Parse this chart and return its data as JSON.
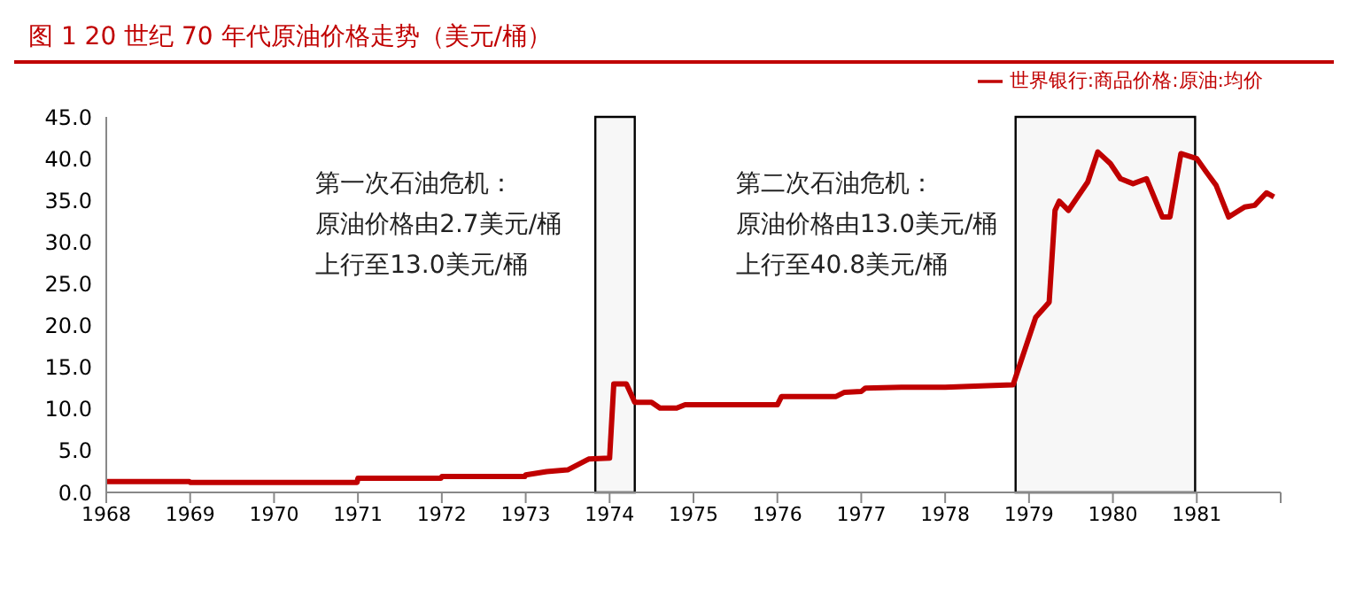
{
  "chart_data": {
    "type": "line",
    "title": "图 1 20 世纪 70 年代原油价格走势（美元/桶）",
    "x": [
      1968.0,
      1968.5,
      1968.99,
      1969.0,
      1969.5,
      1970.0,
      1970.5,
      1970.99,
      1971.0,
      1971.5,
      1971.99,
      1972.0,
      1972.5,
      1972.99,
      1973.0,
      1973.25,
      1973.5,
      1973.75,
      1974.0,
      1974.05,
      1974.2,
      1974.3,
      1974.5,
      1974.6,
      1974.8,
      1974.9,
      1975.5,
      1976.0,
      1976.05,
      1976.7,
      1976.8,
      1977.0,
      1977.05,
      1977.5,
      1978.0,
      1978.5,
      1978.81,
      1979.08,
      1979.24,
      1979.31,
      1979.36,
      1979.47,
      1979.7,
      1979.82,
      1979.97,
      1980.09,
      1980.24,
      1980.4,
      1980.59,
      1980.68,
      1980.81,
      1981.0,
      1981.12,
      1981.23,
      1981.38,
      1981.57,
      1981.69,
      1981.83,
      1981.92
    ],
    "series": [
      {
        "name": "世界银行:商品价格:原油:均价",
        "color": "#c00000",
        "values": [
          1.3,
          1.3,
          1.3,
          1.2,
          1.2,
          1.2,
          1.2,
          1.2,
          1.7,
          1.7,
          1.7,
          1.9,
          1.9,
          1.9,
          2.1,
          2.5,
          2.7,
          4.0,
          4.1,
          13.0,
          13.0,
          10.8,
          10.8,
          10.1,
          10.1,
          10.5,
          10.5,
          10.5,
          11.5,
          11.5,
          12.0,
          12.1,
          12.5,
          12.6,
          12.6,
          12.8,
          12.9,
          21.0,
          22.8,
          33.8,
          34.9,
          33.8,
          37.2,
          40.8,
          39.4,
          37.6,
          37.0,
          37.6,
          33.0,
          33.0,
          40.6,
          40.0,
          38.3,
          36.8,
          33.0,
          34.2,
          34.4,
          35.9,
          35.4
        ]
      }
    ],
    "xlim": [
      1968,
      1982
    ],
    "xticks": [
      1968,
      1969,
      1970,
      1971,
      1972,
      1973,
      1974,
      1975,
      1976,
      1977,
      1978,
      1979,
      1980,
      1981,
      {
        "value": 1982,
        "label": null
      }
    ],
    "ylim": [
      0,
      45
    ],
    "yticks": [
      {
        "value": 0,
        "label": "0.0"
      },
      {
        "value": 5,
        "label": "5.0"
      },
      {
        "value": 10,
        "label": "10.0"
      },
      {
        "value": 15,
        "label": "15.0"
      },
      {
        "value": 20,
        "label": "20.0"
      },
      {
        "value": 25,
        "label": "25.0"
      },
      {
        "value": 30,
        "label": "30.0"
      },
      {
        "value": 35,
        "label": "35.0"
      },
      {
        "value": 40,
        "label": "40.0"
      },
      {
        "value": 45,
        "label": "45.0"
      }
    ],
    "bands": [
      {
        "axis": "x",
        "from": 1973.83,
        "to": 1974.3,
        "color": "#000000"
      },
      {
        "axis": "x",
        "from": 1978.84,
        "to": 1980.98,
        "color": "#000000"
      }
    ],
    "annotations": [
      "第一次石油危机：",
      "原油价格由2.7美元/桶",
      "上行至13.0美元/桶",
      "第二次石油危机：",
      "原油价格由13.0美元/桶",
      "上行至40.8美元/桶"
    ],
    "grid": false,
    "legend": "top right",
    "marker": "none",
    "line_style": "solid"
  }
}
